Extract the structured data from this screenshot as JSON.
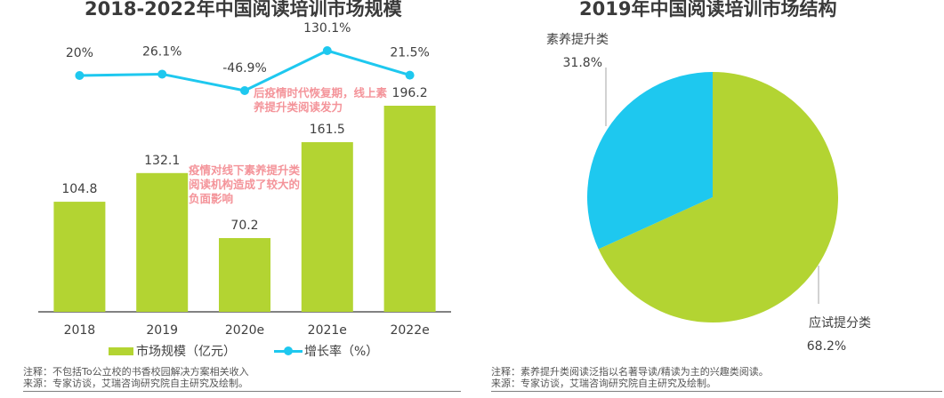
{
  "colors": {
    "bar": "#b3d432",
    "line": "#1ec8ef",
    "annotation": "#f4949a",
    "pie_exam": "#b3d432",
    "pie_quality": "#1ec8ef"
  },
  "chart_data": [
    {
      "type": "bar+line",
      "title": "2018-2022年中国阅读培训市场规模",
      "categories": [
        "2018",
        "2019",
        "2020e",
        "2021e",
        "2022e"
      ],
      "series": [
        {
          "name": "市场规模（亿元）",
          "kind": "bar",
          "values": [
            104.8,
            132.1,
            70.2,
            161.5,
            196.2
          ],
          "labels": [
            "104.8",
            "132.1",
            "70.2",
            "161.5",
            "196.2"
          ]
        },
        {
          "name": "增长率（%）",
          "kind": "line",
          "values": [
            20,
            26.1,
            -46.9,
            130.1,
            21.5
          ],
          "labels": [
            "20%",
            "26.1%",
            "-46.9%",
            "130.1%",
            "21.5%"
          ]
        }
      ],
      "legend": [
        {
          "label": "市场规模（亿元）",
          "icon": "bar-swatch"
        },
        {
          "label": "增长率（%）",
          "icon": "line-marker-swatch"
        }
      ],
      "legend_position": "bottom",
      "annotations": [
        "疫情对线下素养提升类阅读机构造成了较大的负面影响",
        "后疫情时代恢复期，线上素养提升类阅读发力"
      ],
      "note": "注释：不包括To公立校的书香校园解决方案相关收入",
      "source": "来源：专家访谈，艾瑞咨询研究院自主研究及绘制。"
    },
    {
      "type": "pie",
      "title": "2019年中国阅读培训市场结构",
      "slices": [
        {
          "label": "应试提分类",
          "value": 68.2,
          "value_label": "68.2%"
        },
        {
          "label": "素养提升类",
          "value": 31.8,
          "value_label": "31.8%"
        }
      ],
      "note": "注释：素养提升类阅读泛指以名著导读/精读为主的兴趣类阅读。",
      "source": "来源：专家访谈，艾瑞咨询研究院自主研究及绘制。"
    }
  ]
}
